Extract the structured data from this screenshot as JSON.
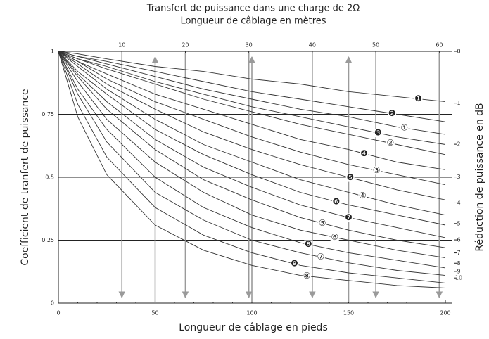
{
  "chart_data": {
    "type": "line",
    "title": "Transfert de puissance dans une charge de 2Ω",
    "subtitle": "Longueur de câblage en mètres",
    "x_label": "Longueur de câblage en pieds",
    "y_label": "Coefficient de tranfert de puissance",
    "y2_label": "Réduction de puissance en dB",
    "x": [
      0,
      10,
      25,
      50,
      75,
      100,
      125,
      150,
      175,
      200
    ],
    "xlim": [
      0,
      200
    ],
    "xticks": [
      0,
      50,
      100,
      150,
      200
    ],
    "x2lim": [
      0,
      60.96
    ],
    "x2ticks": [
      10,
      20,
      30,
      40,
      50,
      60
    ],
    "ylim": [
      0,
      1
    ],
    "yticks": [
      0,
      0.25,
      0.5,
      0.75,
      1
    ],
    "y2_scale": "db",
    "y2ticks": [
      0,
      1,
      2,
      3,
      4,
      5,
      6,
      7,
      8,
      9,
      10
    ],
    "grid": true,
    "color": "#333333",
    "arrow_color": "#9a9a9a",
    "series": [
      {
        "name": "❶",
        "values": [
          1,
          0.99,
          0.97,
          0.94,
          0.92,
          0.89,
          0.87,
          0.84,
          0.82,
          0.8
        ]
      },
      {
        "name": "❷",
        "values": [
          1,
          0.98,
          0.96,
          0.92,
          0.88,
          0.84,
          0.81,
          0.78,
          0.75,
          0.72
        ]
      },
      {
        "name": "①",
        "values": [
          1,
          0.98,
          0.95,
          0.9,
          0.85,
          0.81,
          0.77,
          0.74,
          0.7,
          0.67
        ]
      },
      {
        "name": "❸",
        "values": [
          1,
          0.97,
          0.94,
          0.88,
          0.83,
          0.78,
          0.74,
          0.7,
          0.66,
          0.63
        ]
      },
      {
        "name": "②",
        "values": [
          1,
          0.97,
          0.93,
          0.87,
          0.81,
          0.76,
          0.71,
          0.67,
          0.63,
          0.59
        ]
      },
      {
        "name": "❹",
        "values": [
          1,
          0.96,
          0.91,
          0.83,
          0.77,
          0.71,
          0.65,
          0.61,
          0.56,
          0.53
        ]
      },
      {
        "name": "③",
        "values": [
          1,
          0.96,
          0.89,
          0.8,
          0.73,
          0.66,
          0.6,
          0.55,
          0.51,
          0.47
        ]
      },
      {
        "name": "❺",
        "values": [
          1,
          0.95,
          0.87,
          0.77,
          0.68,
          0.61,
          0.55,
          0.5,
          0.45,
          0.41
        ]
      },
      {
        "name": "④",
        "values": [
          1,
          0.94,
          0.85,
          0.73,
          0.63,
          0.56,
          0.49,
          0.44,
          0.39,
          0.35
        ]
      },
      {
        "name": "❻",
        "values": [
          1,
          0.92,
          0.83,
          0.69,
          0.59,
          0.51,
          0.44,
          0.39,
          0.35,
          0.31
        ]
      },
      {
        "name": "❼",
        "values": [
          1,
          0.91,
          0.8,
          0.65,
          0.54,
          0.46,
          0.39,
          0.34,
          0.3,
          0.26
        ]
      },
      {
        "name": "⑤",
        "values": [
          1,
          0.9,
          0.77,
          0.61,
          0.49,
          0.41,
          0.34,
          0.29,
          0.25,
          0.22
        ]
      },
      {
        "name": "⑥",
        "values": [
          1,
          0.88,
          0.73,
          0.56,
          0.44,
          0.35,
          0.29,
          0.25,
          0.21,
          0.18
        ]
      },
      {
        "name": "❽",
        "values": [
          1,
          0.85,
          0.69,
          0.5,
          0.38,
          0.3,
          0.24,
          0.2,
          0.17,
          0.14
        ]
      },
      {
        "name": "⑦",
        "values": [
          1,
          0.83,
          0.64,
          0.44,
          0.33,
          0.25,
          0.2,
          0.16,
          0.13,
          0.11
        ]
      },
      {
        "name": "❾",
        "values": [
          1,
          0.79,
          0.58,
          0.38,
          0.27,
          0.2,
          0.15,
          0.12,
          0.1,
          0.08
        ]
      },
      {
        "name": "⑧",
        "values": [
          1,
          0.74,
          0.51,
          0.31,
          0.21,
          0.15,
          0.11,
          0.09,
          0.07,
          0.06
        ]
      }
    ]
  }
}
